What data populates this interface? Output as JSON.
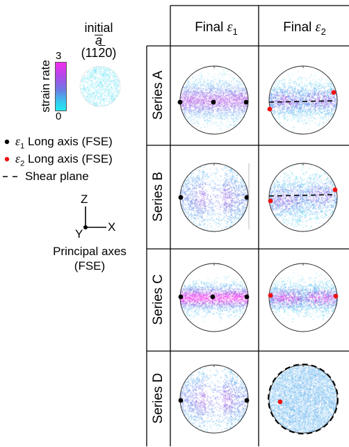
{
  "colors": {
    "cyan": "#22e8f0",
    "blue": "#5a84e8",
    "purple": "#a040e0",
    "magenta": "#f22ef0",
    "eps1_point": "#000000",
    "eps2_point": "#ee1111",
    "grid": "#000000"
  },
  "legend": {
    "initial_line1": "initial",
    "initial_line2": "a",
    "initial_line3": "(11",
    "initial_overbar": "2",
    "initial_line3_end": "0)",
    "colorbar_max": "3",
    "colorbar_min": "0",
    "colorbar_label": "strain rate",
    "eps1_prefix": "ε",
    "eps1_sub": "1",
    "eps1_text": " Long axis (FSE)",
    "eps2_prefix": "ε",
    "eps2_sub": "2",
    "eps2_text": " Long axis (FSE)",
    "shear_text": "Shear plane"
  },
  "axes": {
    "z": "Z",
    "x": "X",
    "y": "Y",
    "caption_line1": "Principal axes",
    "caption_line2": "(FSE)"
  },
  "table": {
    "col1_prefix": "Final ",
    "col1_symbol": "ε",
    "col1_sub": "1",
    "col2_prefix": "Final ",
    "col2_symbol": "ε",
    "col2_sub": "2",
    "rows": [
      {
        "label": "Series A"
      },
      {
        "label": "Series B"
      },
      {
        "label": "Series C"
      },
      {
        "label": "Series D"
      }
    ]
  }
}
